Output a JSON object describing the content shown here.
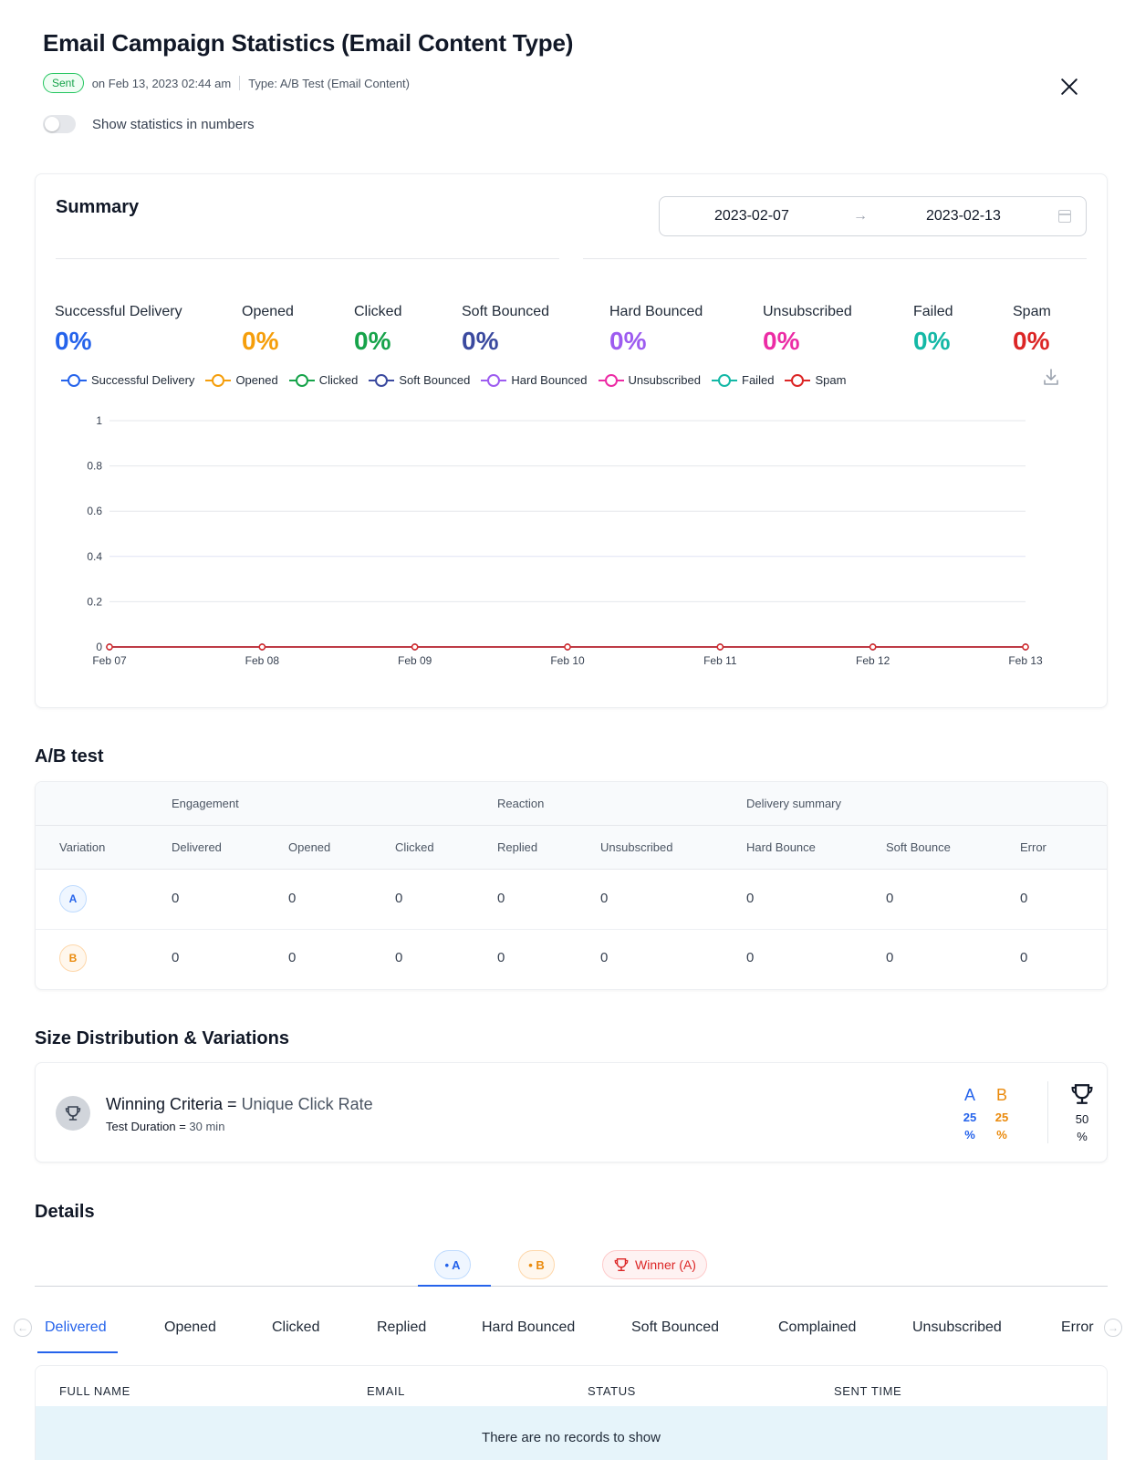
{
  "header": {
    "title": "Email Campaign Statistics (Email Content Type)",
    "status": "Sent",
    "sent_on": "on Feb 13, 2023 02:44 am",
    "type": "Type: A/B Test (Email Content)",
    "toggle_label": "Show statistics in numbers",
    "toggle_on": false
  },
  "summary": {
    "title": "Summary",
    "date_start": "2023-02-07",
    "date_end": "2023-02-13",
    "date_arrow": "→",
    "stats": [
      {
        "label": "Successful Delivery",
        "value": "0%",
        "color": "#2563eb"
      },
      {
        "label": "Opened",
        "value": "0%",
        "color": "#f59e0b"
      },
      {
        "label": "Clicked",
        "value": "0%",
        "color": "#16a34a"
      },
      {
        "label": "Soft Bounced",
        "value": "0%",
        "color": "#3b4a9f"
      },
      {
        "label": "Hard Bounced",
        "value": "0%",
        "color": "#9d5cf0"
      },
      {
        "label": "Unsubscribed",
        "value": "0%",
        "color": "#ec2ca5"
      },
      {
        "label": "Failed",
        "value": "0%",
        "color": "#14b8a6"
      },
      {
        "label": "Spam",
        "value": "0%",
        "color": "#dc2626"
      }
    ]
  },
  "chart_data": {
    "type": "line",
    "categories": [
      "Feb 07",
      "Feb 08",
      "Feb 09",
      "Feb 10",
      "Feb 11",
      "Feb 12",
      "Feb 13"
    ],
    "yticks": [
      "0",
      "0.2",
      "0.4",
      "0.6",
      "0.8",
      "1"
    ],
    "ylim": [
      0,
      1
    ],
    "grid": true,
    "legend_position": "top-left",
    "series": [
      {
        "name": "Successful Delivery",
        "color": "#2563eb",
        "values": [
          0,
          0,
          0,
          0,
          0,
          0,
          0
        ]
      },
      {
        "name": "Opened",
        "color": "#f59e0b",
        "values": [
          0,
          0,
          0,
          0,
          0,
          0,
          0
        ]
      },
      {
        "name": "Clicked",
        "color": "#16a34a",
        "values": [
          0,
          0,
          0,
          0,
          0,
          0,
          0
        ]
      },
      {
        "name": "Soft Bounced",
        "color": "#3b4a9f",
        "values": [
          0,
          0,
          0,
          0,
          0,
          0,
          0
        ]
      },
      {
        "name": "Hard Bounced",
        "color": "#9d5cf0",
        "values": [
          0,
          0,
          0,
          0,
          0,
          0,
          0
        ]
      },
      {
        "name": "Unsubscribed",
        "color": "#ec2ca5",
        "values": [
          0,
          0,
          0,
          0,
          0,
          0,
          0
        ]
      },
      {
        "name": "Failed",
        "color": "#14b8a6",
        "values": [
          0,
          0,
          0,
          0,
          0,
          0,
          0
        ]
      },
      {
        "name": "Spam",
        "color": "#dc2626",
        "values": [
          0,
          0,
          0,
          0,
          0,
          0,
          0
        ]
      }
    ]
  },
  "ab_test": {
    "title": "A/B test",
    "groups": [
      "Engagement",
      "Reaction",
      "Delivery summary"
    ],
    "columns": [
      "Variation",
      "Delivered",
      "Opened",
      "Clicked",
      "Replied",
      "Unsubscribed",
      "Hard Bounce",
      "Soft Bounce",
      "Error"
    ],
    "rows": [
      {
        "variation": "A",
        "cells": [
          "0",
          "0",
          "0",
          "0",
          "0",
          "0",
          "0",
          "0"
        ]
      },
      {
        "variation": "B",
        "cells": [
          "0",
          "0",
          "0",
          "0",
          "0",
          "0",
          "0",
          "0"
        ]
      }
    ]
  },
  "size_distribution": {
    "title": "Size Distribution & Variations",
    "winning_label": "Winning Criteria = ",
    "winning_value": "Unique Click Rate",
    "duration_label": "Test Duration = ",
    "duration_value": "30 min",
    "a_letter": "A",
    "a_num": "25",
    "a_pct": "%",
    "b_letter": "B",
    "b_num": "25",
    "b_pct": "%",
    "winner_num": "50",
    "winner_pct": "%",
    "a_color": "#2563eb",
    "b_color": "#ea8a0c"
  },
  "details": {
    "title": "Details",
    "variant_tabs": [
      "• A",
      "• B",
      "Winner (A)"
    ],
    "sub_tabs": [
      "Delivered",
      "Opened",
      "Clicked",
      "Replied",
      "Hard Bounced",
      "Soft Bounced",
      "Complained",
      "Unsubscribed",
      "Error"
    ],
    "active_sub_tab": "Delivered",
    "table_columns": [
      "FULL NAME",
      "EMAIL",
      "STATUS",
      "SENT TIME"
    ],
    "empty_message": "There are no records to show",
    "nav_left": "←",
    "nav_right": "→"
  }
}
